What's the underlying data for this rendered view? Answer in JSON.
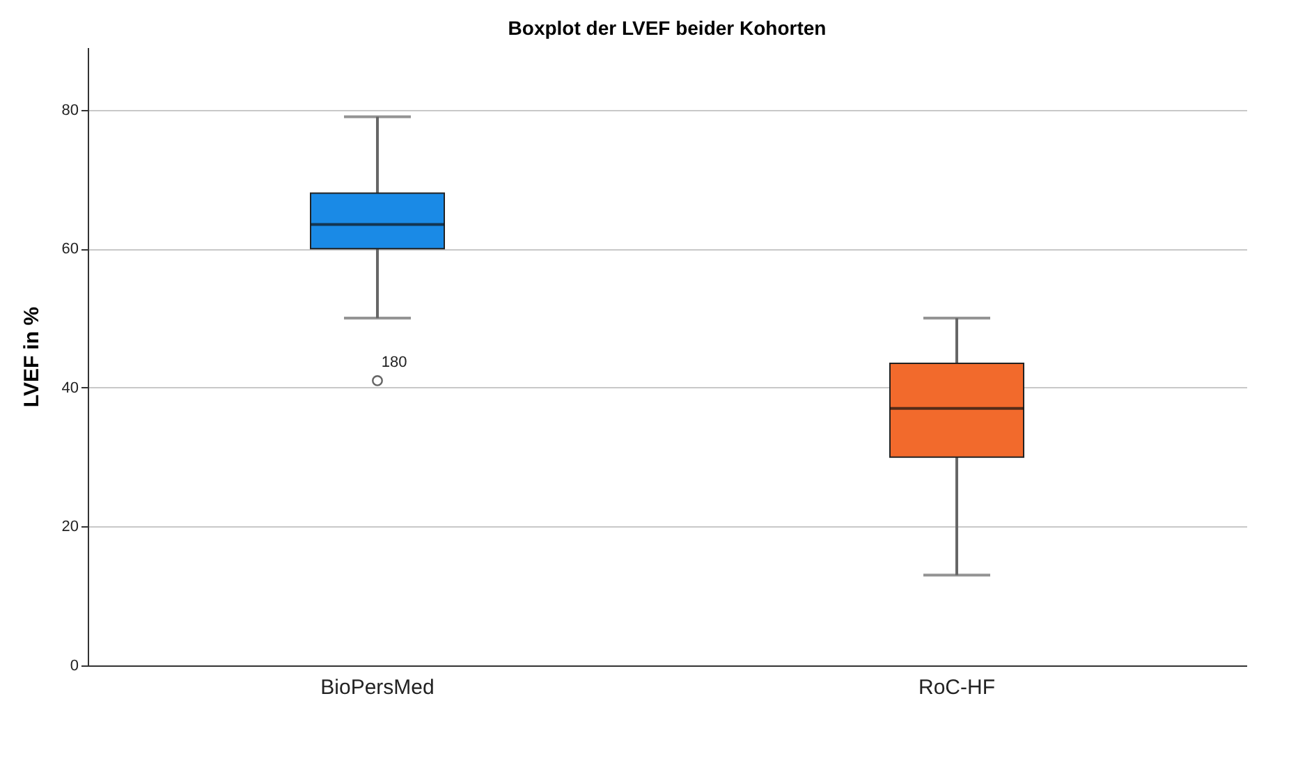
{
  "chart_data": {
    "type": "box",
    "title": "Boxplot der LVEF beider Kohorten",
    "ylabel": "LVEF in %",
    "categories": [
      "BioPersMed",
      "RoC-HF"
    ],
    "boxes": [
      {
        "low": 50,
        "q1": 60,
        "median": 63.5,
        "q3": 68,
        "high": 79,
        "outliers": [
          41
        ]
      },
      {
        "low": 13,
        "q1": 30,
        "median": 37,
        "q3": 43.5,
        "high": 50
      }
    ],
    "colors": [
      "#1a8ae6",
      "#f26a2c"
    ],
    "ylim": [
      0,
      89
    ],
    "yticks": [
      0,
      20,
      40,
      60,
      80
    ],
    "grid": "y",
    "annotations": [
      "180"
    ]
  }
}
